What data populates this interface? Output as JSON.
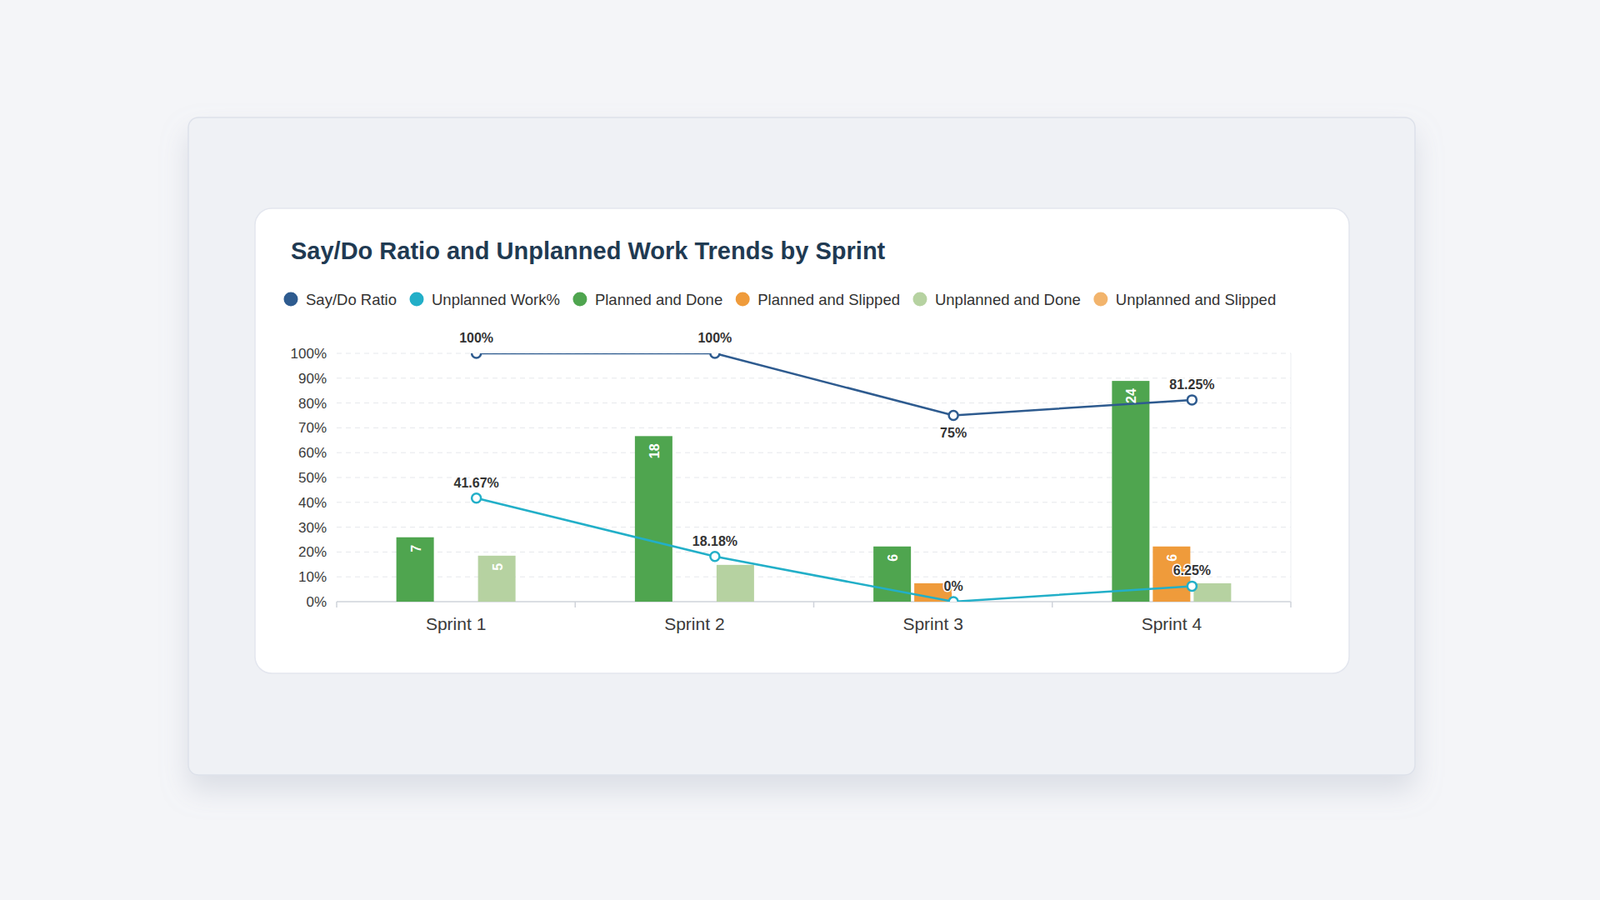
{
  "chart_data": {
    "type": "bar",
    "title": "Say/Do Ratio and Unplanned Work Trends by Sprint",
    "categories": [
      "Sprint 1",
      "Sprint 2",
      "Sprint 3",
      "Sprint 4"
    ],
    "ylim": [
      0,
      100
    ],
    "yticks": [
      {
        "value": 0,
        "label": "0%"
      },
      {
        "value": 10,
        "label": "10%"
      },
      {
        "value": 20,
        "label": "20%"
      },
      {
        "value": 30,
        "label": "30%"
      },
      {
        "value": 40,
        "label": "40%"
      },
      {
        "value": 50,
        "label": "50%"
      },
      {
        "value": 60,
        "label": "60%"
      },
      {
        "value": 70,
        "label": "70%"
      },
      {
        "value": 80,
        "label": "80%"
      },
      {
        "value": 90,
        "label": "90%"
      },
      {
        "value": 100,
        "label": "100%"
      }
    ],
    "y2lim": [
      0,
      27
    ],
    "grid": true,
    "legend": "top",
    "series": [
      {
        "name": "Say/Do Ratio",
        "type": "line",
        "color": "#2e5b8f",
        "marker": "circle",
        "data_labels": true,
        "values": [
          100,
          100,
          75,
          81.25
        ],
        "value_labels": [
          "100%",
          "100%",
          "75%",
          "81.25%"
        ]
      },
      {
        "name": "Unplanned Work%",
        "type": "line",
        "color": "#22afc8",
        "marker": "circle",
        "data_labels": true,
        "values": [
          41.67,
          18.18,
          0,
          6.25
        ],
        "value_labels": [
          "41.67%",
          "18.18%",
          "0%",
          "6.25%"
        ]
      },
      {
        "name": "Planned and Done",
        "type": "bar",
        "axis": "y2",
        "color": "#4fa54f",
        "data_labels": true,
        "values": [
          7,
          18,
          6,
          24
        ]
      },
      {
        "name": "Planned and Slipped",
        "type": "bar",
        "axis": "y2",
        "color": "#ef9b3b",
        "data_labels": true,
        "values": [
          0,
          0,
          2,
          6
        ]
      },
      {
        "name": "Unplanned and Done",
        "type": "bar",
        "axis": "y2",
        "color": "#b6d2a1",
        "data_labels": true,
        "values": [
          5,
          4,
          0,
          2
        ]
      },
      {
        "name": "Unplanned and Slipped",
        "type": "bar",
        "axis": "y2",
        "color": "#f2b46c",
        "data_labels": true,
        "values": [
          0,
          0,
          0,
          0
        ]
      }
    ]
  }
}
